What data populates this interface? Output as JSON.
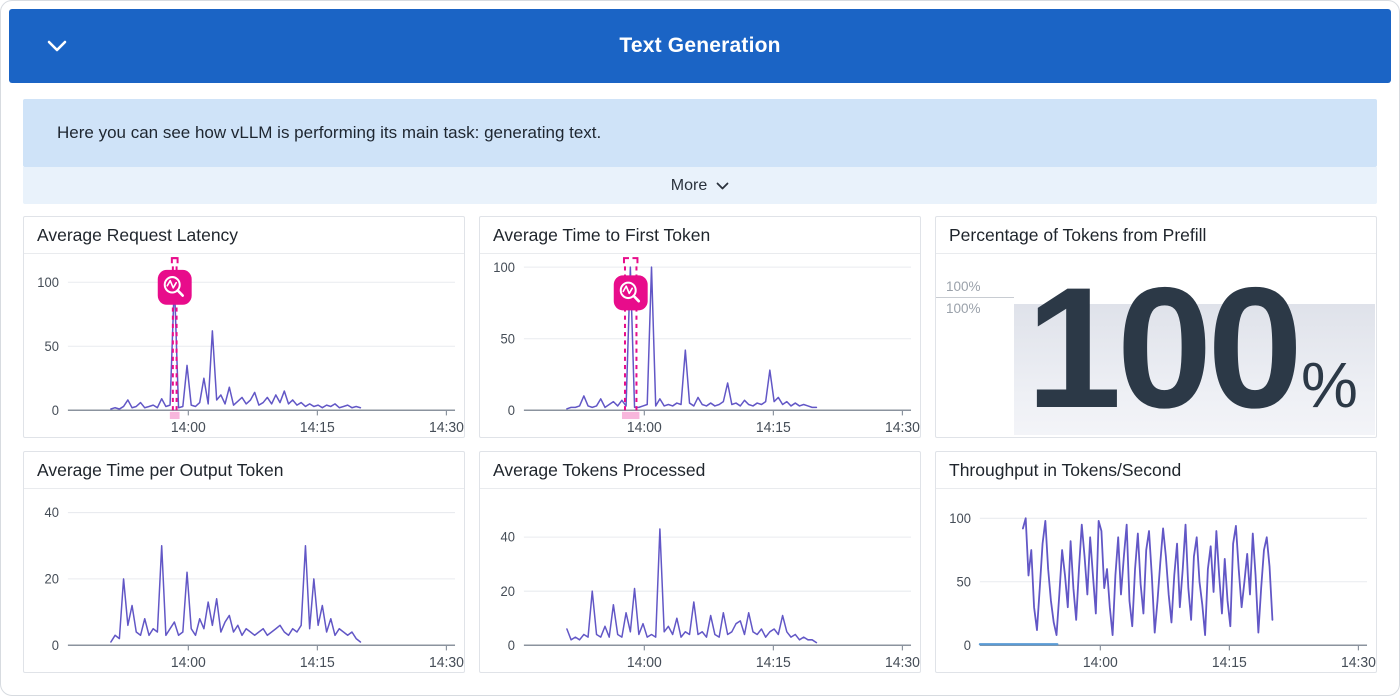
{
  "header": {
    "title": "Text Generation"
  },
  "callout": {
    "text": "Here you can see how vLLM is performing its main task: generating text.",
    "more_label": "More"
  },
  "colors": {
    "accent_blue": "#1b64c5",
    "callout_bg": "#cfe3f8",
    "more_bg": "#e9f2fb",
    "page_border": "#d7dbe0",
    "panel_border": "#e0e3e8",
    "grid": "#e9ebef",
    "axis_text": "#454d57",
    "zero_line": "#8b939e",
    "series_purple": "#6257c6",
    "series_blue": "#5a9bd5",
    "anomaly_pink": "#e80c8b",
    "stat_text": "#2c3947"
  },
  "chart_data": [
    {
      "type": "timeseries",
      "title": "Average Request Latency",
      "x_axis": {
        "start": "13:46",
        "end": "14:31",
        "ticks": [
          "14:00",
          "14:15",
          "14:30"
        ]
      },
      "y_axis": {
        "ticks": [
          0,
          50,
          100
        ],
        "max": 114
      },
      "series": [
        {
          "name": "request-latency",
          "color": "series_purple",
          "x_start": "13:51",
          "x_end": "14:20",
          "values": [
            1,
            2,
            1,
            3,
            8,
            2,
            3,
            6,
            2,
            3,
            4,
            2,
            9,
            3,
            4,
            100,
            2,
            3,
            35,
            4,
            3,
            6,
            25,
            5,
            62,
            8,
            12,
            5,
            18,
            4,
            7,
            10,
            5,
            8,
            14,
            4,
            6,
            10,
            5,
            12,
            6,
            15,
            5,
            8,
            4,
            6,
            3,
            5,
            3,
            4,
            2,
            4,
            3,
            5,
            2,
            3,
            4,
            2,
            3,
            2
          ]
        }
      ],
      "anomaly": {
        "time": "13:58:25",
        "region": [
          "13:58:12",
          "13:58:38"
        ],
        "icon_value": 96
      }
    },
    {
      "type": "timeseries",
      "title": "Average Time to First Token",
      "x_axis": {
        "start": "13:46",
        "end": "14:31",
        "ticks": [
          "14:00",
          "14:15",
          "14:30"
        ]
      },
      "y_axis": {
        "ticks": [
          0,
          50,
          100
        ],
        "max": 102
      },
      "series": [
        {
          "name": "time-to-first-token",
          "color": "series_purple",
          "x_start": "13:51",
          "x_end": "14:20",
          "values": [
            1,
            2,
            2,
            3,
            10,
            3,
            2,
            3,
            8,
            2,
            4,
            6,
            3,
            7,
            3,
            100,
            2,
            2,
            3,
            4,
            100,
            3,
            8,
            3,
            4,
            3,
            5,
            4,
            42,
            5,
            3,
            9,
            4,
            3,
            5,
            3,
            4,
            6,
            19,
            4,
            5,
            3,
            7,
            4,
            3,
            5,
            4,
            6,
            28,
            6,
            9,
            4,
            6,
            3,
            5,
            3,
            4,
            3,
            2,
            2
          ]
        }
      ],
      "anomaly": {
        "time": "13:58:25",
        "region": [
          "13:57:45",
          "13:59:05"
        ],
        "icon_value": 82
      }
    },
    {
      "type": "stat",
      "title": "Percentage of Tokens from Prefill",
      "value": "100",
      "unit": "%",
      "axis_labels": [
        "100%",
        "100%"
      ]
    },
    {
      "type": "timeseries",
      "title": "Average Time per Output Token",
      "x_axis": {
        "start": "13:46",
        "end": "14:31",
        "ticks": [
          "14:00",
          "14:15",
          "14:30"
        ]
      },
      "y_axis": {
        "ticks": [
          0,
          20,
          40
        ],
        "max": 44
      },
      "series": [
        {
          "name": "time-per-output-token",
          "color": "series_purple",
          "x_start": "13:51",
          "x_end": "14:20",
          "values": [
            1,
            3,
            2,
            20,
            6,
            12,
            4,
            3,
            8,
            3,
            5,
            4,
            30,
            3,
            5,
            7,
            3,
            4,
            22,
            5,
            3,
            8,
            5,
            13,
            6,
            14,
            4,
            7,
            9,
            4,
            6,
            3,
            5,
            4,
            3,
            4,
            5,
            3,
            4,
            5,
            6,
            4,
            3,
            5,
            4,
            6,
            30,
            5,
            20,
            6,
            12,
            4,
            8,
            3,
            5,
            4,
            3,
            4,
            2,
            1
          ]
        }
      ]
    },
    {
      "type": "timeseries",
      "title": "Average Tokens Processed",
      "x_axis": {
        "start": "13:46",
        "end": "14:31",
        "ticks": [
          "14:00",
          "14:15",
          "14:30"
        ]
      },
      "y_axis": {
        "ticks": [
          0,
          20,
          40
        ],
        "max": 54
      },
      "series": [
        {
          "name": "tokens-processed",
          "color": "series_purple",
          "x_start": "13:51",
          "x_end": "14:20",
          "values": [
            6,
            2,
            3,
            2,
            4,
            3,
            20,
            4,
            3,
            7,
            3,
            15,
            4,
            3,
            12,
            5,
            21,
            4,
            8,
            3,
            4,
            3,
            43,
            5,
            7,
            4,
            10,
            3,
            5,
            4,
            16,
            4,
            5,
            3,
            11,
            4,
            3,
            12,
            4,
            5,
            8,
            9,
            4,
            12,
            5,
            4,
            6,
            3,
            5,
            6,
            4,
            11,
            5,
            3,
            4,
            2,
            3,
            2,
            2,
            1
          ]
        }
      ]
    },
    {
      "type": "timeseries",
      "title": "Throughput in Tokens/Second",
      "x_axis": {
        "start": "13:46",
        "end": "14:31",
        "ticks": [
          "14:00",
          "14:15",
          "14:30"
        ]
      },
      "y_axis": {
        "ticks": [
          0,
          50,
          100
        ],
        "max": 115
      },
      "series": [
        {
          "name": "throughput-baseline",
          "color": "series_blue",
          "width": 2.2,
          "x_start": "13:46",
          "x_end": "13:55",
          "values": [
            0.8,
            0.8
          ]
        },
        {
          "name": "throughput",
          "color": "series_purple",
          "width": 1.8,
          "x_start": "13:51",
          "x_end": "14:20",
          "values": [
            92,
            100,
            55,
            75,
            30,
            12,
            45,
            80,
            98,
            60,
            35,
            18,
            8,
            40,
            75,
            55,
            30,
            82,
            45,
            20,
            60,
            95,
            70,
            40,
            85,
            55,
            25,
            98,
            90,
            45,
            60,
            30,
            8,
            55,
            85,
            40,
            70,
            95,
            35,
            15,
            60,
            88,
            48,
            25,
            75,
            90,
            55,
            10,
            35,
            65,
            92,
            70,
            40,
            18,
            55,
            80,
            30,
            60,
            95,
            45,
            20,
            70,
            85,
            50,
            32,
            8,
            60,
            78,
            42,
            90,
            55,
            25,
            68,
            35,
            15,
            80,
            94,
            60,
            30,
            50,
            72,
            40,
            88,
            55,
            10,
            45,
            75,
            85,
            62,
            20
          ]
        }
      ]
    }
  ]
}
